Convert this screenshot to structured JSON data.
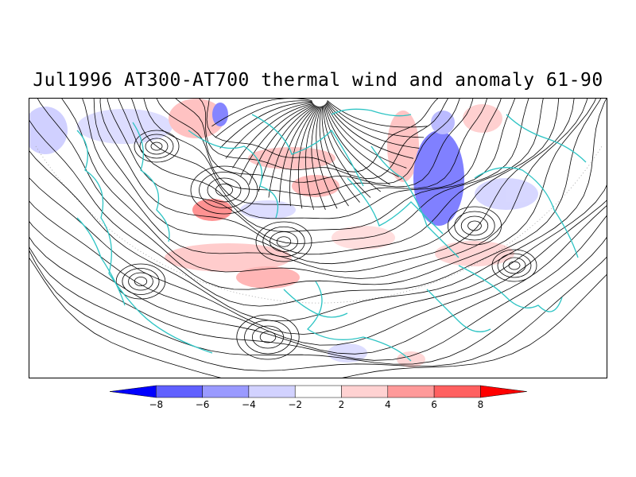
{
  "title": "Jul1996 AT300-AT700 thermal wind and anomaly 61-90",
  "colors": {
    "coastline": "#2ec4c4",
    "streamline": "#000000",
    "neg_strong": "#4040ff",
    "neg_mid": "#8080ff",
    "neg_light": "#c8c8ff",
    "pos_light": "#ffcfcf",
    "pos_mid": "#ff9a9a",
    "pos_strong": "#ff5a5a"
  },
  "colorbar": {
    "tick_labels": [
      "-8",
      "-6",
      "-4",
      "-2",
      "2",
      "4",
      "6",
      "8"
    ],
    "bins": [
      {
        "color": "#0000ff",
        "type": "arrow-left"
      },
      {
        "color": "#6060ff"
      },
      {
        "color": "#9a9aff"
      },
      {
        "color": "#d2d2ff"
      },
      {
        "color": "#ffffff"
      },
      {
        "color": "#ffd2d2"
      },
      {
        "color": "#ff9a9a"
      },
      {
        "color": "#ff6060"
      },
      {
        "color": "#ff0000",
        "type": "arrow-right"
      }
    ]
  }
}
